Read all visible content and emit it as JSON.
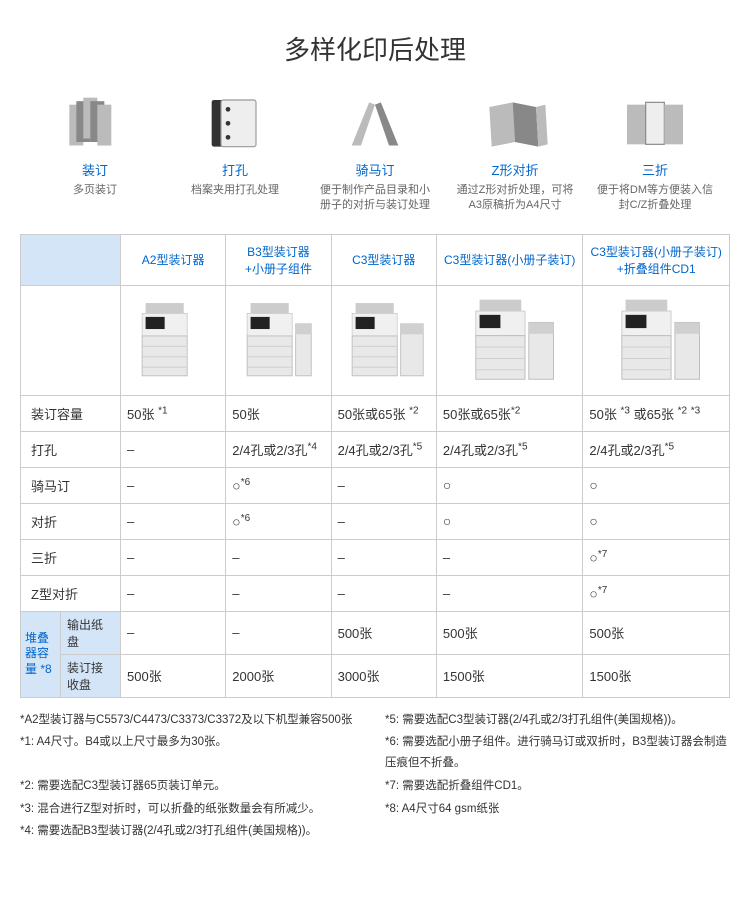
{
  "title": "多样化印后处理",
  "features": [
    {
      "label": "装订",
      "desc": "多页装订",
      "icon": "booklet-stack"
    },
    {
      "label": "打孔",
      "desc": "档案夹用打孔处理",
      "icon": "punched"
    },
    {
      "label": "骑马订",
      "desc": "便于制作产品目录和小册子的对折与装订处理",
      "icon": "saddle"
    },
    {
      "label": "Z形对折",
      "desc": "通过Z形对折处理，可将A3原稿折为A4尺寸",
      "icon": "zfold"
    },
    {
      "label": "三折",
      "desc": "便于将DM等方便装入信封C/Z折叠处理",
      "icon": "trifold"
    }
  ],
  "table": {
    "columns": [
      "A2型装订器",
      "B3型装订器+小册子组件",
      "C3型装订器",
      "C3型装订器(小册子装订)",
      "C3型装订器(小册子装订)+折叠组件CD1"
    ],
    "rows": [
      {
        "label": "装订容量",
        "cells": [
          "50张 *1",
          "50张",
          "50张或65张 *2",
          "50张或65张*2",
          "50张 *3 或65张 *2 *3"
        ]
      },
      {
        "label": "打孔",
        "cells": [
          "–",
          "2/4孔或2/3孔*4",
          "2/4孔或2/3孔*5",
          "2/4孔或2/3孔*5",
          "2/4孔或2/3孔*5"
        ]
      },
      {
        "label": "骑马订",
        "cells": [
          "–",
          "○*6",
          "–",
          "○",
          "○"
        ]
      },
      {
        "label": "对折",
        "cells": [
          "–",
          "○*6",
          "–",
          "○",
          "○"
        ]
      },
      {
        "label": "三折",
        "cells": [
          "–",
          "–",
          "–",
          "–",
          "○*7"
        ]
      },
      {
        "label": "Z型对折",
        "cells": [
          "–",
          "–",
          "–",
          "–",
          "○*7"
        ]
      }
    ],
    "stack": {
      "groupLabel": "堆叠器容量 *8",
      "sub1": "输出纸盘",
      "sub2": "装订接收盘",
      "row1": [
        "–",
        "–",
        "500张",
        "500张",
        "500张"
      ],
      "row2": [
        "500张",
        "2000张",
        "3000张",
        "1500张",
        "1500张"
      ]
    }
  },
  "footnotes": {
    "left": [
      "*A2型装订器与C5573/C4473/C3373/C3372及以下机型兼容500张",
      "*1: A4尺寸。B4或以上尺寸最多为30张。",
      "*2: 需要选配C3型装订器65页装订单元。",
      "*3: 混合进行Z型对折时，可以折叠的纸张数量会有所减少。",
      "*4: 需要选配B3型装订器(2/4孔或2/3打孔组件(美国规格))。"
    ],
    "right": [
      "*5: 需要选配C3型装订器(2/4孔或2/3打孔组件(美国规格))。",
      "*6: 需要选配小册子组件。进行骑马订或双折时，B3型装订器会制造压痕但不折叠。",
      "*7: 需要选配折叠组件CD1。",
      "*8: A4尺寸64 gsm纸张"
    ]
  },
  "colors": {
    "link": "#0066cc",
    "headerBg": "#d4e5f7",
    "border": "#cccccc",
    "text": "#333333"
  }
}
